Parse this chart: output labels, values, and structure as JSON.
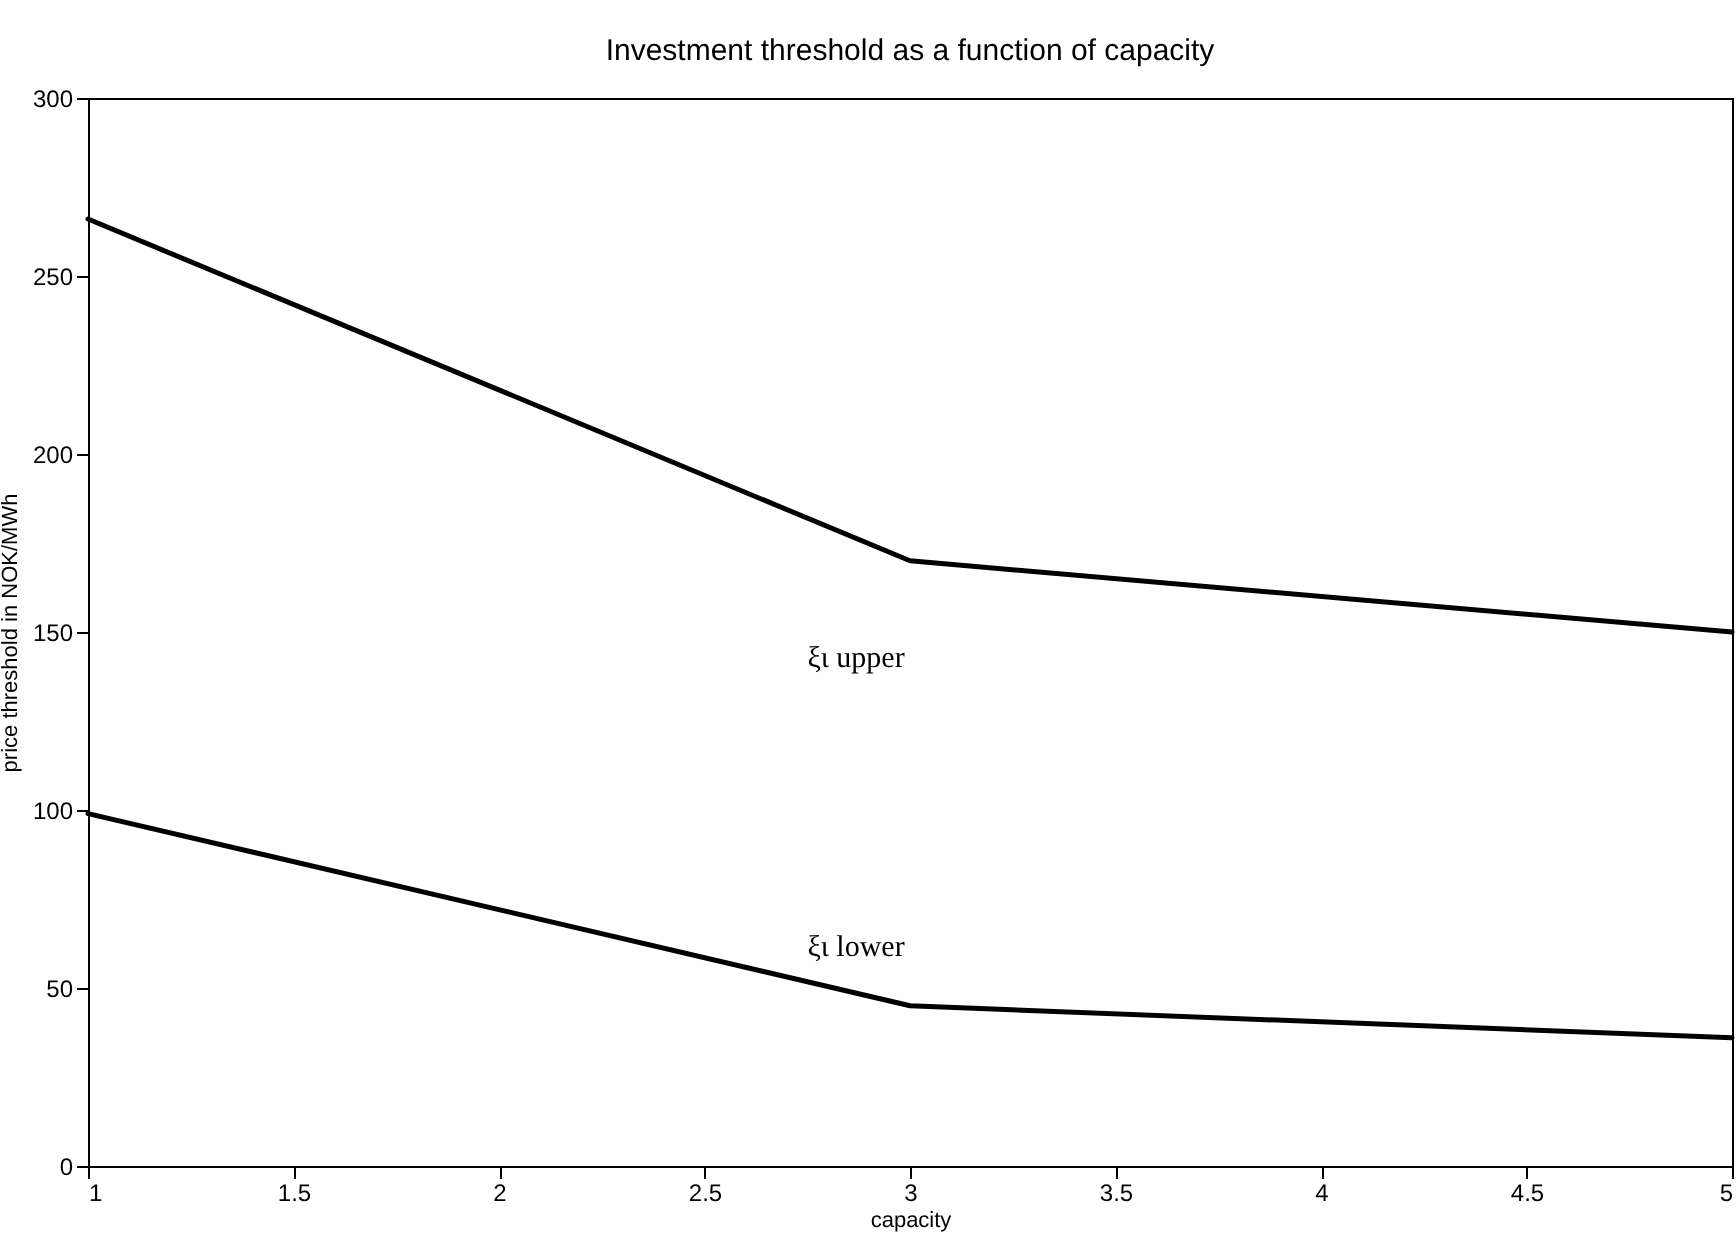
{
  "chart_data": {
    "type": "line",
    "title": "Investment threshold as a function of capacity",
    "xlabel": "capacity",
    "ylabel": "price threshold in NOK/MWh",
    "x": [
      1,
      3,
      5
    ],
    "series": [
      {
        "name": "ξι upper",
        "color": "#000000",
        "values": [
          266,
          170,
          150
        ]
      },
      {
        "name": "ξι lower",
        "color": "#000000",
        "values": [
          99,
          45,
          36
        ]
      }
    ],
    "xlim": [
      1,
      5
    ],
    "xticks": [
      1,
      1.5,
      2,
      2.5,
      3,
      3.5,
      4,
      4.5,
      5
    ],
    "ylim": [
      0,
      300
    ],
    "yticks": [
      0,
      50,
      100,
      150,
      200,
      250,
      300
    ],
    "grid": false,
    "marker": "none",
    "line_style": "solid"
  }
}
